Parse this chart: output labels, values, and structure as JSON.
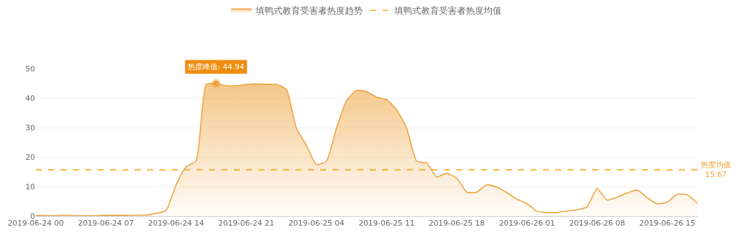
{
  "chart_data": {
    "type": "area",
    "x": [
      "2019-06-24T00:00",
      "2019-06-24T01:00",
      "2019-06-24T02:00",
      "2019-06-24T03:00",
      "2019-06-24T04:00",
      "2019-06-24T05:00",
      "2019-06-24T06:00",
      "2019-06-24T07:00",
      "2019-06-24T08:00",
      "2019-06-24T09:00",
      "2019-06-24T10:00",
      "2019-06-24T11:00",
      "2019-06-24T12:00",
      "2019-06-24T13:00",
      "2019-06-24T14:00",
      "2019-06-24T15:00",
      "2019-06-24T16:00",
      "2019-06-24T17:00",
      "2019-06-24T18:00",
      "2019-06-24T19:00",
      "2019-06-24T20:00",
      "2019-06-24T21:00",
      "2019-06-24T22:00",
      "2019-06-24T23:00",
      "2019-06-25T00:00",
      "2019-06-25T01:00",
      "2019-06-25T02:00",
      "2019-06-25T03:00",
      "2019-06-25T04:00",
      "2019-06-25T05:00",
      "2019-06-25T06:00",
      "2019-06-25T07:00",
      "2019-06-25T08:00",
      "2019-06-25T09:00",
      "2019-06-25T10:00",
      "2019-06-25T11:00",
      "2019-06-25T12:00",
      "2019-06-25T13:00",
      "2019-06-25T14:00",
      "2019-06-25T15:00",
      "2019-06-25T16:00",
      "2019-06-25T17:00",
      "2019-06-25T18:00",
      "2019-06-25T19:00",
      "2019-06-25T20:00",
      "2019-06-25T21:00",
      "2019-06-25T22:00",
      "2019-06-25T23:00",
      "2019-06-26T00:00",
      "2019-06-26T01:00",
      "2019-06-26T02:00",
      "2019-06-26T03:00",
      "2019-06-26T04:00",
      "2019-06-26T05:00",
      "2019-06-26T06:00",
      "2019-06-26T07:00",
      "2019-06-26T08:00",
      "2019-06-26T09:00",
      "2019-06-26T10:00",
      "2019-06-26T11:00",
      "2019-06-26T12:00",
      "2019-06-26T13:00",
      "2019-06-26T14:00",
      "2019-06-26T15:00",
      "2019-06-26T16:00",
      "2019-06-26T17:00",
      "2019-06-26T18:00"
    ],
    "series": [
      {
        "name": "填鸭式教育受害者热度趋势",
        "color": "#eda23c",
        "values": [
          0.2,
          0.1,
          0.1,
          0.3,
          0.1,
          0.1,
          0.1,
          0.2,
          0.2,
          0.2,
          0.3,
          0.3,
          0.9,
          1.9,
          10.5,
          16.7,
          18.7,
          44.6,
          44.94,
          44.2,
          44.2,
          44.6,
          44.8,
          44.7,
          44.6,
          43.0,
          29.8,
          24.0,
          17.4,
          18.6,
          29.8,
          39.1,
          42.6,
          42.2,
          40.3,
          39.5,
          36.0,
          29.8,
          18.6,
          18.0,
          13.2,
          14.5,
          12.8,
          8.1,
          8.1,
          10.6,
          9.8,
          7.9,
          5.7,
          4.2,
          1.6,
          1.2,
          1.2,
          1.7,
          2.1,
          3.1,
          9.3,
          5.4,
          6.4,
          7.8,
          8.8,
          6.2,
          4.1,
          4.7,
          7.4,
          7.2,
          4.3
        ]
      },
      {
        "name": "填鸭式教育受害者热度均值",
        "color": "#f5a623",
        "type": "line",
        "line_style": "dashed",
        "x": [
          "2019-06-24T00:00",
          "2019-06-26T18:00"
        ],
        "values": [
          15.67,
          15.67
        ]
      }
    ],
    "annotations": [
      {
        "text": "热度峰值: 44.94",
        "x": "2019-06-24T18:00",
        "y": 44.94
      },
      {
        "text": "热度均值\n15.67",
        "x": "2019-06-26T18:00",
        "y": 15.67
      }
    ],
    "xlim": [
      "2019-06-24T00:00",
      "2019-06-26T18:00"
    ],
    "xticks": [
      {
        "value": "2019-06-24T00:00",
        "label": "2019-06-24 00"
      },
      {
        "value": "2019-06-24T07:00",
        "label": "2019-06-24 07"
      },
      {
        "value": "2019-06-24T14:00",
        "label": "2019-06-24 14"
      },
      {
        "value": "2019-06-24T21:00",
        "label": "2019-06-24 21"
      },
      {
        "value": "2019-06-25T04:00",
        "label": "2019-06-25 04"
      },
      {
        "value": "2019-06-25T11:00",
        "label": "2019-06-25 11"
      },
      {
        "value": "2019-06-25T18:00",
        "label": "2019-06-25 18"
      },
      {
        "value": "2019-06-26T01:00",
        "label": "2019-06-26 01"
      },
      {
        "value": "2019-06-26T08:00",
        "label": "2019-06-26 08"
      },
      {
        "value": "2019-06-26T15:00",
        "label": "2019-06-26 15"
      }
    ],
    "ylim": [
      0,
      50
    ],
    "yticks": [
      0,
      10,
      20,
      30,
      40,
      50
    ],
    "grid": "y",
    "legend": "top"
  }
}
